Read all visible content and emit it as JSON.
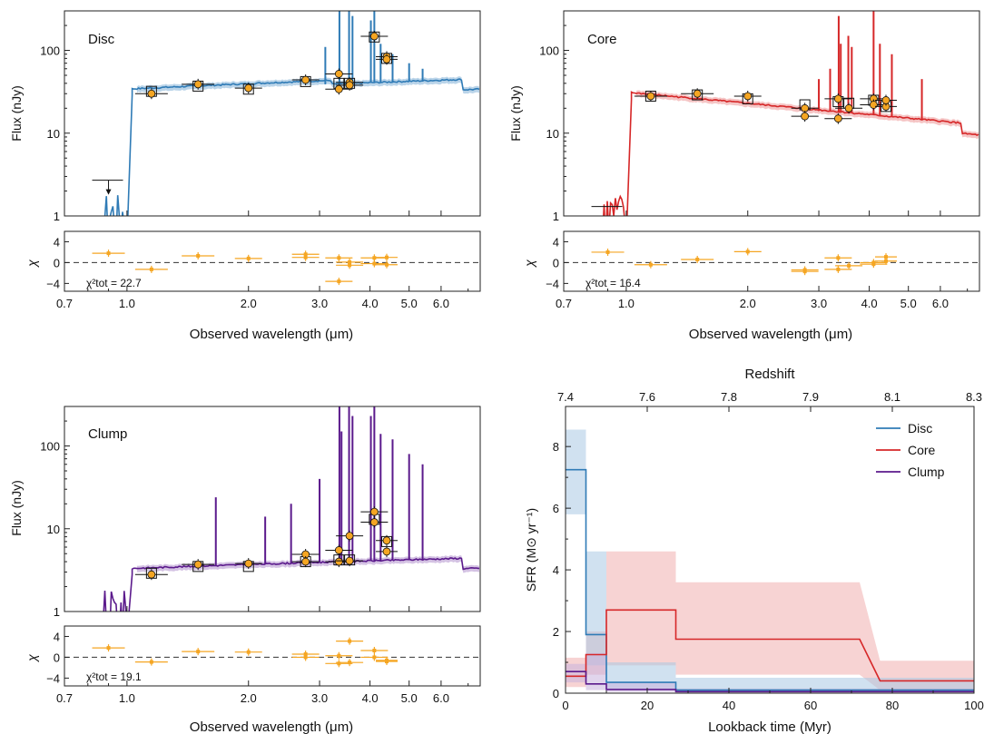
{
  "colors": {
    "disc": "#2f7bb6",
    "disc_band": "#a9c9e3",
    "core": "#d62728",
    "core_band": "#f2b6b6",
    "clump": "#5b1a8c",
    "clump_band": "#c9b3dc",
    "points": "#f5a623",
    "chi_points": "#f5a623",
    "axis": "#222222"
  },
  "sed_common": {
    "xlabel": "Observed wavelength (μm)",
    "ylabel": "Flux (nJy)",
    "chi_label": "χ",
    "x_scale": "log",
    "x_range": [
      0.7,
      7.5
    ],
    "x_ticks": [
      0.7,
      1.0,
      2.0,
      3.0,
      4.0,
      5.0,
      6.0
    ],
    "x_ticklabels": [
      "0.7",
      "1.0",
      "2.0",
      "3.0",
      "4.0",
      "5.0",
      "6.0"
    ],
    "y_scale": "log",
    "y_range": [
      1,
      300
    ],
    "y_ticks": [
      1,
      10,
      100
    ],
    "y_ticklabels": [
      "1",
      "10",
      "100"
    ],
    "chi_range": [
      -5.5,
      6
    ],
    "chi_ticks": [
      4,
      0,
      -4
    ],
    "chi_ticklabels": [
      "4",
      "0",
      "−4"
    ]
  },
  "chart_data": [
    {
      "type": "scatter",
      "panel": "Disc",
      "label": "Disc",
      "chi2_label": "χ²tot = 22.7",
      "chi2_total": 22.7,
      "photometry": [
        {
          "x": 1.15,
          "y": 30
        },
        {
          "x": 1.5,
          "y": 39
        },
        {
          "x": 2.0,
          "y": 35
        },
        {
          "x": 2.77,
          "y": 44
        },
        {
          "x": 3.35,
          "y": 52
        },
        {
          "x": 3.35,
          "y": 34
        },
        {
          "x": 3.56,
          "y": 41
        },
        {
          "x": 3.56,
          "y": 38
        },
        {
          "x": 4.1,
          "y": 148
        },
        {
          "x": 4.4,
          "y": 84
        },
        {
          "x": 4.4,
          "y": 78
        }
      ],
      "model_points": [
        {
          "x": 1.15,
          "y": 32
        },
        {
          "x": 1.5,
          "y": 37
        },
        {
          "x": 2.0,
          "y": 34
        },
        {
          "x": 2.77,
          "y": 42
        },
        {
          "x": 3.35,
          "y": 40
        },
        {
          "x": 3.56,
          "y": 40
        },
        {
          "x": 4.1,
          "y": 145
        },
        {
          "x": 4.4,
          "y": 80
        }
      ],
      "upper_limits": [
        {
          "x": 0.9,
          "y": 2.7
        }
      ],
      "chi": [
        {
          "x": 0.9,
          "y": 1.8
        },
        {
          "x": 1.15,
          "y": -1.3
        },
        {
          "x": 1.5,
          "y": 1.3
        },
        {
          "x": 2.0,
          "y": 0.8
        },
        {
          "x": 2.77,
          "y": 1.0
        },
        {
          "x": 2.77,
          "y": 1.6
        },
        {
          "x": 3.35,
          "y": -3.6
        },
        {
          "x": 3.35,
          "y": 0.9
        },
        {
          "x": 3.56,
          "y": 0.1
        },
        {
          "x": 3.56,
          "y": -0.5
        },
        {
          "x": 4.1,
          "y": 0.9
        },
        {
          "x": 4.1,
          "y": -0.2
        },
        {
          "x": 4.4,
          "y": -0.4
        },
        {
          "x": 4.4,
          "y": 1.0
        }
      ],
      "continuum_level": 34,
      "lines": [
        [
          3.36,
          300
        ],
        [
          3.55,
          300
        ],
        [
          3.62,
          260
        ],
        [
          4.02,
          230
        ],
        [
          4.1,
          300
        ],
        [
          4.25,
          120
        ],
        [
          4.55,
          90
        ],
        [
          5.0,
          70
        ],
        [
          5.4,
          60
        ],
        [
          3.1,
          110
        ]
      ]
    },
    {
      "type": "scatter",
      "panel": "Core",
      "label": "Core",
      "chi2_label": "χ²tot = 16.4",
      "chi2_total": 16.4,
      "photometry": [
        {
          "x": 1.15,
          "y": 28
        },
        {
          "x": 1.5,
          "y": 30
        },
        {
          "x": 2.0,
          "y": 28
        },
        {
          "x": 2.77,
          "y": 20
        },
        {
          "x": 2.77,
          "y": 16
        },
        {
          "x": 3.35,
          "y": 26
        },
        {
          "x": 3.35,
          "y": 15
        },
        {
          "x": 3.56,
          "y": 20
        },
        {
          "x": 4.1,
          "y": 26
        },
        {
          "x": 4.1,
          "y": 22
        },
        {
          "x": 4.4,
          "y": 21
        },
        {
          "x": 4.4,
          "y": 25
        }
      ],
      "model_points": [
        {
          "x": 1.15,
          "y": 28
        },
        {
          "x": 1.5,
          "y": 29
        },
        {
          "x": 2.0,
          "y": 26
        },
        {
          "x": 2.77,
          "y": 22
        },
        {
          "x": 3.35,
          "y": 24
        },
        {
          "x": 3.56,
          "y": 23
        },
        {
          "x": 4.1,
          "y": 25
        },
        {
          "x": 4.4,
          "y": 21
        }
      ],
      "upper_limits": [
        {
          "x": 0.9,
          "y": 1.3
        }
      ],
      "chi": [
        {
          "x": 0.9,
          "y": 2.0
        },
        {
          "x": 1.15,
          "y": -0.4
        },
        {
          "x": 1.5,
          "y": 0.6
        },
        {
          "x": 2.0,
          "y": 2.1
        },
        {
          "x": 2.77,
          "y": -1.4
        },
        {
          "x": 2.77,
          "y": -1.7
        },
        {
          "x": 3.35,
          "y": -1.3
        },
        {
          "x": 3.35,
          "y": 0.9
        },
        {
          "x": 3.56,
          "y": -0.6
        },
        {
          "x": 4.1,
          "y": 0.0
        },
        {
          "x": 4.1,
          "y": -0.3
        },
        {
          "x": 4.4,
          "y": 1.1
        },
        {
          "x": 4.4,
          "y": 0.3
        }
      ],
      "continuum_level": 30,
      "lines": [
        [
          3.36,
          260
        ],
        [
          3.4,
          120
        ],
        [
          3.55,
          150
        ],
        [
          3.62,
          110
        ],
        [
          4.1,
          300
        ],
        [
          4.25,
          120
        ],
        [
          4.55,
          90
        ],
        [
          5.4,
          45
        ],
        [
          3.2,
          60
        ],
        [
          3.0,
          45
        ]
      ]
    },
    {
      "type": "scatter",
      "panel": "Clump",
      "label": "Clump",
      "chi2_label": "χ²tot = 19.1",
      "chi2_total": 19.1,
      "photometry": [
        {
          "x": 1.15,
          "y": 2.8
        },
        {
          "x": 1.5,
          "y": 3.7
        },
        {
          "x": 2.0,
          "y": 3.8
        },
        {
          "x": 2.77,
          "y": 4.9
        },
        {
          "x": 2.77,
          "y": 4.0
        },
        {
          "x": 3.35,
          "y": 5.5
        },
        {
          "x": 3.35,
          "y": 4.0
        },
        {
          "x": 3.56,
          "y": 8.2
        },
        {
          "x": 3.56,
          "y": 4.1
        },
        {
          "x": 4.1,
          "y": 16
        },
        {
          "x": 4.1,
          "y": 12
        },
        {
          "x": 4.4,
          "y": 7.2
        },
        {
          "x": 4.4,
          "y": 5.3
        }
      ],
      "model_points": [
        {
          "x": 1.15,
          "y": 2.9
        },
        {
          "x": 1.5,
          "y": 3.5
        },
        {
          "x": 2.0,
          "y": 3.5
        },
        {
          "x": 2.77,
          "y": 4.0
        },
        {
          "x": 3.35,
          "y": 4.2
        },
        {
          "x": 3.56,
          "y": 4.2
        },
        {
          "x": 4.1,
          "y": 13
        },
        {
          "x": 4.4,
          "y": 7.0
        }
      ],
      "upper_limits": [],
      "chi": [
        {
          "x": 0.9,
          "y": 1.8
        },
        {
          "x": 1.15,
          "y": -0.9
        },
        {
          "x": 1.5,
          "y": 1.1
        },
        {
          "x": 2.0,
          "y": 1.0
        },
        {
          "x": 2.77,
          "y": 0.6
        },
        {
          "x": 2.77,
          "y": 0.0
        },
        {
          "x": 3.35,
          "y": -1.2
        },
        {
          "x": 3.35,
          "y": 0.3
        },
        {
          "x": 3.56,
          "y": 3.1
        },
        {
          "x": 3.56,
          "y": -1.0
        },
        {
          "x": 4.1,
          "y": 1.3
        },
        {
          "x": 4.1,
          "y": 0.0
        },
        {
          "x": 4.4,
          "y": -0.6
        },
        {
          "x": 4.4,
          "y": -0.8
        }
      ],
      "continuum_level": 3.3,
      "lines": [
        [
          1.66,
          24
        ],
        [
          3.36,
          300
        ],
        [
          3.4,
          150
        ],
        [
          3.55,
          300
        ],
        [
          3.62,
          230
        ],
        [
          4.02,
          230
        ],
        [
          4.1,
          300
        ],
        [
          4.25,
          140
        ],
        [
          4.55,
          120
        ],
        [
          5.0,
          80
        ],
        [
          5.4,
          60
        ],
        [
          3.0,
          40
        ],
        [
          2.55,
          20
        ],
        [
          2.2,
          14
        ]
      ]
    },
    {
      "type": "line",
      "panel": "SFH",
      "xlabel": "Lookback time (Myr)",
      "ylabel": "SFR (M⊙ yr⁻¹)",
      "top_xlabel": "Redshift",
      "xlim": [
        0,
        100
      ],
      "ylim": [
        0,
        9.3
      ],
      "x_ticks": [
        0,
        20,
        40,
        60,
        80,
        100
      ],
      "x_ticklabels": [
        "0",
        "20",
        "40",
        "60",
        "80",
        "100"
      ],
      "y_ticks": [
        0,
        2,
        4,
        6,
        8
      ],
      "y_ticklabels": [
        "0",
        "2",
        "4",
        "6",
        "8"
      ],
      "top_ticks": [
        {
          "x": 0,
          "label": "7.4"
        },
        {
          "x": 20,
          "label": "7.6"
        },
        {
          "x": 40,
          "label": "7.8"
        },
        {
          "x": 60,
          "label": "7.9"
        },
        {
          "x": 80,
          "label": "8.1"
        },
        {
          "x": 100,
          "label": "8.3"
        }
      ],
      "legend_position": "top-right",
      "series": [
        {
          "name": "Disc",
          "x": [
            0,
            5,
            5,
            10,
            10,
            27,
            27,
            75,
            100
          ],
          "y": [
            7.25,
            7.25,
            1.9,
            1.9,
            0.35,
            0.35,
            0.1,
            0.1,
            0.1
          ],
          "band_x": [
            0,
            5,
            5,
            10,
            10,
            27,
            27,
            75,
            100
          ],
          "band_lo": [
            5.8,
            5.8,
            0.9,
            0.9,
            0.15,
            0.15,
            0.05,
            0.05,
            0.05
          ],
          "band_hi": [
            8.55,
            8.55,
            4.6,
            4.6,
            1.0,
            1.0,
            0.5,
            0.5,
            0.5
          ]
        },
        {
          "name": "Core",
          "x": [
            0,
            5,
            5,
            10,
            10,
            27,
            27,
            72,
            77,
            100
          ],
          "y": [
            0.55,
            0.55,
            1.25,
            1.25,
            2.7,
            2.7,
            1.75,
            1.75,
            0.4,
            0.4
          ],
          "band_x": [
            0,
            5,
            5,
            10,
            10,
            27,
            27,
            72,
            77,
            100
          ],
          "band_lo": [
            0.2,
            0.2,
            0.6,
            0.6,
            0.9,
            0.9,
            0.6,
            0.6,
            0.1,
            0.1
          ],
          "band_hi": [
            1.15,
            1.15,
            2.0,
            2.0,
            4.6,
            4.6,
            3.6,
            3.6,
            1.05,
            1.05
          ]
        },
        {
          "name": "Clump",
          "x": [
            0,
            5,
            5,
            10,
            10,
            27,
            27,
            100
          ],
          "y": [
            0.7,
            0.7,
            0.3,
            0.3,
            0.12,
            0.12,
            0.05,
            0.05
          ],
          "band_x": [
            0,
            5,
            5,
            10,
            10,
            27,
            27,
            100
          ],
          "band_lo": [
            0.35,
            0.35,
            0.1,
            0.1,
            0.04,
            0.04,
            0.02,
            0.02
          ],
          "band_hi": [
            0.95,
            0.95,
            1.3,
            1.3,
            0.35,
            0.35,
            0.15,
            0.15
          ]
        }
      ]
    }
  ]
}
